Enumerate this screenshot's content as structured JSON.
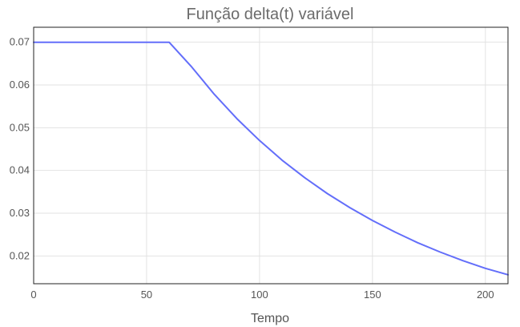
{
  "chart_data": {
    "type": "line",
    "title": "Função delta(t) variável",
    "xlabel": "Tempo",
    "ylabel": "",
    "xlim": [
      0,
      210
    ],
    "ylim": [
      0.0135,
      0.0735
    ],
    "xticks": [
      0,
      50,
      100,
      150,
      200
    ],
    "xtick_labels": [
      "0",
      "50",
      "100",
      "150",
      "200"
    ],
    "yticks": [
      0.02,
      0.03,
      0.04,
      0.05,
      0.06,
      0.07
    ],
    "ytick_labels": [
      "0.02",
      "0.03",
      "0.04",
      "0.05",
      "0.06",
      "0.07"
    ],
    "grid": true,
    "legend": "none",
    "series": [
      {
        "color": "#636efa",
        "x": [
          0,
          60,
          70,
          80,
          90,
          100,
          110,
          120,
          130,
          140,
          150,
          160,
          170,
          180,
          190,
          200,
          210
        ],
        "y": [
          0.07,
          0.07,
          0.0642,
          0.0578,
          0.0521,
          0.047,
          0.0424,
          0.0383,
          0.0346,
          0.0313,
          0.0283,
          0.0256,
          0.0231,
          0.0209,
          0.0189,
          0.0171,
          0.0156
        ]
      }
    ]
  }
}
